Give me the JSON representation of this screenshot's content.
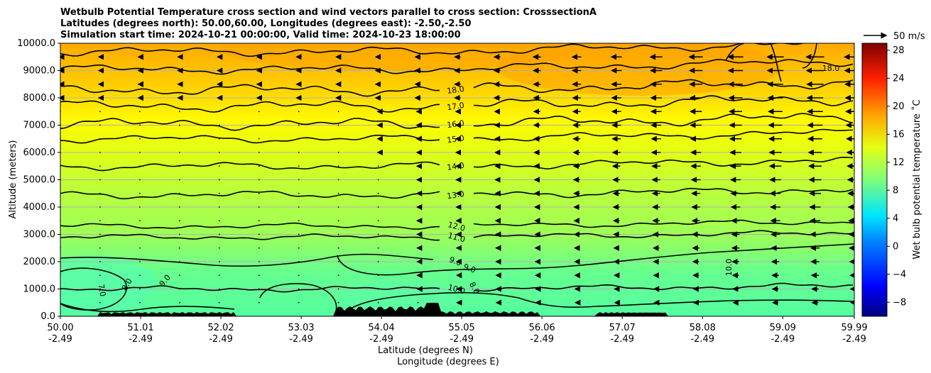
{
  "title": {
    "line1": "Wetbulb Potential Temperature cross section and wind vectors parallel to cross section: CrosssectionA",
    "line2": "Latitudes (degrees north): 50.00,60.00, Longitudes (degrees east): -2.50,-2.50",
    "line3": "Simulation start time: 2024-10-21 00:00:00, Valid time: 2024-10-23 18:00:00"
  },
  "quiver_key": {
    "label": "50 m/s"
  },
  "colorbar": {
    "label": "Wet bulb potential temperature ˚C",
    "ticks": [
      "28",
      "24",
      "20",
      "16",
      "12",
      "8",
      "4",
      "0",
      "−4",
      "−8"
    ],
    "range": [
      -10,
      29
    ],
    "colormap": "jet"
  },
  "chart_data": {
    "type": "heatmap",
    "subtype": "cross-section filled contour with line contours and wind vectors",
    "xlabel_lat": "Latitude (degrees N)",
    "xlabel_lon": "Longitude (degrees E)",
    "ylabel": "Altitude (meters)",
    "ylim": [
      0,
      10000
    ],
    "xlim": [
      50.0,
      59.99
    ],
    "x_ticks_lat": [
      "50.00",
      "51.01",
      "52.02",
      "53.03",
      "54.04",
      "55.05",
      "56.06",
      "57.07",
      "58.08",
      "59.09",
      "59.99"
    ],
    "x_ticks_lon": [
      "-2.49",
      "-2.49",
      "-2.49",
      "-2.49",
      "-2.49",
      "-2.49",
      "-2.49",
      "-2.49",
      "-2.49",
      "-2.49",
      "-2.49"
    ],
    "y_ticks": [
      "0.0",
      "1000.0",
      "2000.0",
      "3000.0",
      "4000.0",
      "5000.0",
      "6000.0",
      "7000.0",
      "8000.0",
      "9000.0",
      "10000.0"
    ],
    "grid": "horizontal",
    "contours": [
      {
        "level": 10,
        "label": "10.0",
        "altitude": 1000
      },
      {
        "level": 11,
        "label": "11.0",
        "altitude": 2900
      },
      {
        "level": 12,
        "label": "12.0",
        "altitude": 3300
      },
      {
        "level": 13,
        "label": "13.0",
        "altitude": 4450
      },
      {
        "level": 14,
        "label": "14.0",
        "altitude": 5500
      },
      {
        "level": 15,
        "label": "15.0",
        "altitude": 6500
      },
      {
        "level": 16,
        "label": "16.0",
        "altitude": 7050
      },
      {
        "level": 17,
        "label": "17.0",
        "altitude": 7700
      },
      {
        "level": 18,
        "label": "18.0",
        "altitude": 8300
      }
    ],
    "low_contour_labels": [
      "9.0",
      "9.0",
      "8.0",
      "8.0",
      "7.0",
      "9.0",
      "10.0"
    ],
    "wind": {
      "lats": [
        50.0,
        50.5,
        51.0,
        51.5,
        52.0,
        52.5,
        53.0,
        53.5,
        54.0,
        54.5,
        55.0,
        55.5,
        56.0,
        56.5,
        57.0,
        57.5,
        58.0,
        58.5,
        59.0,
        59.5,
        59.99
      ],
      "levels": [
        500,
        1000,
        1500,
        2000,
        2500,
        3000,
        3500,
        4000,
        4500,
        5000,
        5500,
        6000,
        6500,
        7000,
        7500,
        8000,
        8500,
        9000,
        9500
      ],
      "speed_max_ms": 50
    }
  }
}
